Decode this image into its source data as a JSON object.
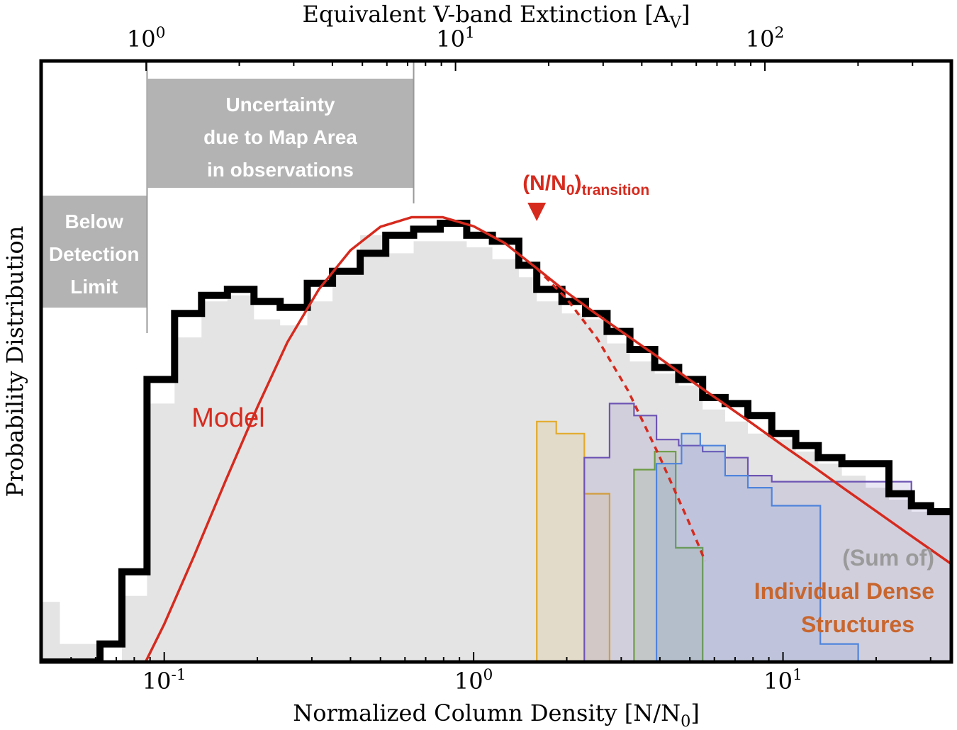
{
  "chart_data": {
    "type": "line",
    "xscale": "log",
    "xlim": [
      0.04,
      35
    ],
    "ylim": [
      0,
      1
    ],
    "xlabel": "Normalized Column Density [N/N",
    "xlabel_sub": "0",
    "xlabel_end": "]",
    "top_xlabel": "Equivalent V-band Extinction [A",
    "top_xlabel_sub": "V",
    "top_xlabel_end": "]",
    "ylabel": "Probability Distribution",
    "x_ticks": [
      {
        "value": 0.1,
        "base": "10",
        "exp": "-1"
      },
      {
        "value": 1,
        "base": "10",
        "exp": "0"
      },
      {
        "value": 10,
        "base": "10",
        "exp": "1"
      }
    ],
    "top_ticks": [
      {
        "value": 0.0874,
        "base": "10",
        "exp": "0"
      },
      {
        "value": 0.874,
        "base": "10",
        "exp": "1"
      },
      {
        "value": 8.74,
        "base": "10",
        "exp": "2"
      }
    ],
    "annotations": {
      "below_detection": [
        "Below",
        "Detection",
        "Limit"
      ],
      "uncertainty": [
        "Uncertainty",
        "due to Map Area",
        "in observations"
      ],
      "transition_main": "(N/N",
      "transition_sub0": "0",
      "transition_close": ")",
      "transition_sub": "transition",
      "model": "Model",
      "sum_of": "(Sum of)",
      "individual_1": "Individual Dense",
      "individual_2": "Structures"
    },
    "colors": {
      "observed": "#000000",
      "model": "#d62a1e",
      "gray_fill": "#e4e4e4",
      "band_fill": "#b3b3b3",
      "dense_label": "#c8662e",
      "sum_label": "#9a9a9a",
      "yellow": "#e2ab2e",
      "purple": "#6d54b4",
      "green": "#6e9c46",
      "blue": "#4f84dc"
    },
    "regions": {
      "below_detection_x": [
        0.04,
        0.088
      ],
      "uncertainty_x": [
        0.088,
        0.64
      ]
    },
    "transition_x": 1.6,
    "series": {
      "observed": [
        [
          0.04,
          0.0
        ],
        [
          0.062,
          0.0
        ],
        [
          0.062,
          0.03
        ],
        [
          0.073,
          0.03
        ],
        [
          0.073,
          0.15
        ],
        [
          0.088,
          0.15
        ],
        [
          0.088,
          0.47
        ],
        [
          0.108,
          0.47
        ],
        [
          0.108,
          0.58
        ],
        [
          0.132,
          0.58
        ],
        [
          0.132,
          0.61
        ],
        [
          0.16,
          0.61
        ],
        [
          0.16,
          0.62
        ],
        [
          0.195,
          0.62
        ],
        [
          0.195,
          0.6
        ],
        [
          0.237,
          0.6
        ],
        [
          0.237,
          0.59
        ],
        [
          0.29,
          0.59
        ],
        [
          0.29,
          0.63
        ],
        [
          0.35,
          0.63
        ],
        [
          0.35,
          0.65
        ],
        [
          0.43,
          0.65
        ],
        [
          0.43,
          0.68
        ],
        [
          0.52,
          0.68
        ],
        [
          0.52,
          0.71
        ],
        [
          0.64,
          0.71
        ],
        [
          0.64,
          0.72
        ],
        [
          0.78,
          0.72
        ],
        [
          0.78,
          0.73
        ],
        [
          0.95,
          0.73
        ],
        [
          0.95,
          0.71
        ],
        [
          1.15,
          0.71
        ],
        [
          1.15,
          0.7
        ],
        [
          1.4,
          0.7
        ],
        [
          1.4,
          0.66
        ],
        [
          1.6,
          0.66
        ],
        [
          1.6,
          0.62
        ],
        [
          1.93,
          0.62
        ],
        [
          1.93,
          0.6
        ],
        [
          2.3,
          0.6
        ],
        [
          2.3,
          0.58
        ],
        [
          2.7,
          0.58
        ],
        [
          2.7,
          0.55
        ],
        [
          3.2,
          0.55
        ],
        [
          3.2,
          0.52
        ],
        [
          3.85,
          0.52
        ],
        [
          3.85,
          0.49
        ],
        [
          4.6,
          0.49
        ],
        [
          4.6,
          0.47
        ],
        [
          5.5,
          0.47
        ],
        [
          5.5,
          0.44
        ],
        [
          6.5,
          0.44
        ],
        [
          6.5,
          0.43
        ],
        [
          7.7,
          0.43
        ],
        [
          7.7,
          0.41
        ],
        [
          9.2,
          0.41
        ],
        [
          9.2,
          0.38
        ],
        [
          11,
          0.38
        ],
        [
          11,
          0.36
        ],
        [
          13,
          0.36
        ],
        [
          13,
          0.34
        ],
        [
          15.5,
          0.34
        ],
        [
          15.5,
          0.33
        ],
        [
          18.5,
          0.33
        ],
        [
          18.5,
          0.33
        ],
        [
          22,
          0.33
        ],
        [
          22,
          0.28
        ],
        [
          26,
          0.28
        ],
        [
          26,
          0.26
        ],
        [
          30,
          0.26
        ],
        [
          30,
          0.25
        ],
        [
          35,
          0.25
        ]
      ],
      "model": [
        [
          0.087,
          0.0
        ],
        [
          0.1,
          0.063
        ],
        [
          0.125,
          0.177
        ],
        [
          0.158,
          0.302
        ],
        [
          0.2,
          0.424
        ],
        [
          0.25,
          0.532
        ],
        [
          0.316,
          0.62
        ],
        [
          0.4,
          0.685
        ],
        [
          0.5,
          0.724
        ],
        [
          0.631,
          0.74
        ],
        [
          0.794,
          0.74
        ],
        [
          1.0,
          0.725
        ],
        [
          1.26,
          0.697
        ],
        [
          1.6,
          0.655
        ],
        [
          2.0,
          0.615
        ],
        [
          2.51,
          0.578
        ],
        [
          3.16,
          0.542
        ],
        [
          3.98,
          0.506
        ],
        [
          5.01,
          0.469
        ],
        [
          6.31,
          0.433
        ],
        [
          7.94,
          0.397
        ],
        [
          10.0,
          0.36
        ],
        [
          12.6,
          0.324
        ],
        [
          15.8,
          0.288
        ],
        [
          20.0,
          0.251
        ],
        [
          25.1,
          0.215
        ],
        [
          31.6,
          0.179
        ],
        [
          35,
          0.163
        ]
      ],
      "model_dashed": [
        [
          1.6,
          0.655
        ],
        [
          2.0,
          0.604
        ],
        [
          2.51,
          0.538
        ],
        [
          3.16,
          0.451
        ],
        [
          3.98,
          0.343
        ],
        [
          5.01,
          0.228
        ],
        [
          5.6,
          0.168
        ]
      ],
      "gray_fill": [
        [
          0.04,
          0.1
        ],
        [
          0.046,
          0.1
        ],
        [
          0.046,
          0.03
        ],
        [
          0.062,
          0.03
        ],
        [
          0.062,
          0.0
        ],
        [
          0.073,
          0.0
        ],
        [
          0.073,
          0.11
        ],
        [
          0.088,
          0.11
        ],
        [
          0.088,
          0.43
        ],
        [
          0.108,
          0.43
        ],
        [
          0.108,
          0.54
        ],
        [
          0.132,
          0.54
        ],
        [
          0.132,
          0.6
        ],
        [
          0.16,
          0.6
        ],
        [
          0.16,
          0.61
        ],
        [
          0.195,
          0.61
        ],
        [
          0.195,
          0.57
        ],
        [
          0.237,
          0.57
        ],
        [
          0.237,
          0.56
        ],
        [
          0.29,
          0.56
        ],
        [
          0.29,
          0.6
        ],
        [
          0.35,
          0.6
        ],
        [
          0.35,
          0.65
        ],
        [
          0.43,
          0.65
        ],
        [
          0.43,
          0.71
        ],
        [
          0.52,
          0.71
        ],
        [
          0.52,
          0.68
        ],
        [
          0.64,
          0.68
        ],
        [
          0.64,
          0.7
        ],
        [
          0.78,
          0.7
        ],
        [
          0.78,
          0.7
        ],
        [
          0.95,
          0.7
        ],
        [
          0.95,
          0.69
        ],
        [
          1.15,
          0.69
        ],
        [
          1.15,
          0.67
        ],
        [
          1.4,
          0.67
        ],
        [
          1.4,
          0.64
        ],
        [
          1.6,
          0.64
        ],
        [
          1.6,
          0.6
        ],
        [
          1.93,
          0.6
        ],
        [
          1.93,
          0.58
        ],
        [
          2.3,
          0.58
        ],
        [
          2.3,
          0.57
        ],
        [
          2.7,
          0.57
        ],
        [
          2.7,
          0.53
        ],
        [
          3.2,
          0.53
        ],
        [
          3.2,
          0.5
        ],
        [
          3.85,
          0.5
        ],
        [
          3.85,
          0.48
        ],
        [
          4.6,
          0.48
        ],
        [
          4.6,
          0.46
        ],
        [
          5.5,
          0.46
        ],
        [
          5.5,
          0.42
        ],
        [
          6.5,
          0.42
        ],
        [
          6.5,
          0.4
        ],
        [
          7.7,
          0.4
        ],
        [
          7.7,
          0.38
        ],
        [
          9.2,
          0.38
        ],
        [
          9.2,
          0.37
        ],
        [
          11,
          0.37
        ],
        [
          11,
          0.35
        ],
        [
          13,
          0.35
        ],
        [
          13,
          0.33
        ],
        [
          15.5,
          0.33
        ],
        [
          15.5,
          0.31
        ],
        [
          18.5,
          0.31
        ],
        [
          18.5,
          0.29
        ],
        [
          22,
          0.29
        ],
        [
          22,
          0.27
        ],
        [
          26,
          0.27
        ],
        [
          26,
          0.25
        ],
        [
          35,
          0.25
        ]
      ],
      "sum_fill": [
        [
          0.9,
          0.0
        ],
        [
          0.9,
          0.24
        ],
        [
          1.0,
          0.24
        ],
        [
          1.0,
          0.44
        ],
        [
          1.15,
          0.44
        ],
        [
          1.15,
          0.46
        ],
        [
          1.4,
          0.46
        ],
        [
          1.4,
          0.44
        ],
        [
          1.6,
          0.44
        ],
        [
          1.6,
          0.43
        ],
        [
          1.93,
          0.43
        ],
        [
          1.93,
          0.44
        ],
        [
          2.3,
          0.44
        ],
        [
          2.3,
          0.42
        ],
        [
          2.7,
          0.42
        ],
        [
          2.7,
          0.43
        ],
        [
          3.2,
          0.43
        ],
        [
          3.2,
          0.4
        ],
        [
          3.85,
          0.4
        ],
        [
          3.85,
          0.37
        ],
        [
          4.6,
          0.37
        ],
        [
          4.6,
          0.4
        ],
        [
          5.5,
          0.4
        ],
        [
          5.5,
          0.38
        ],
        [
          6.5,
          0.38
        ],
        [
          6.5,
          0.37
        ],
        [
          7.7,
          0.37
        ],
        [
          7.7,
          0.36
        ],
        [
          9.2,
          0.36
        ],
        [
          9.2,
          0.35
        ],
        [
          11,
          0.35
        ],
        [
          11,
          0.33
        ],
        [
          13,
          0.33
        ],
        [
          13,
          0.31
        ],
        [
          15.5,
          0.31
        ],
        [
          15.5,
          0.3
        ],
        [
          18.5,
          0.3
        ],
        [
          18.5,
          0.28
        ],
        [
          22,
          0.28
        ],
        [
          22,
          0.26
        ],
        [
          26,
          0.26
        ],
        [
          26,
          0.25
        ],
        [
          35,
          0.25
        ],
        [
          35,
          0.0
        ]
      ],
      "structures": [
        {
          "color_key": "yellow",
          "points": [
            [
              1.6,
              0.0
            ],
            [
              1.6,
              0.4
            ],
            [
              1.85,
              0.4
            ],
            [
              1.85,
              0.38
            ],
            [
              2.28,
              0.38
            ],
            [
              2.28,
              0.28
            ],
            [
              2.75,
              0.28
            ],
            [
              2.75,
              0.0
            ]
          ]
        },
        {
          "color_key": "purple",
          "points": [
            [
              2.28,
              0.0
            ],
            [
              2.28,
              0.34
            ],
            [
              2.75,
              0.34
            ],
            [
              2.75,
              0.43
            ],
            [
              3.3,
              0.43
            ],
            [
              3.3,
              0.41
            ],
            [
              3.9,
              0.41
            ],
            [
              3.9,
              0.37
            ],
            [
              4.6,
              0.37
            ],
            [
              4.6,
              0.36
            ],
            [
              5.5,
              0.36
            ],
            [
              5.5,
              0.35
            ],
            [
              6.5,
              0.35
            ],
            [
              6.5,
              0.34
            ],
            [
              7.7,
              0.34
            ],
            [
              7.7,
              0.31
            ],
            [
              9.2,
              0.31
            ],
            [
              9.2,
              0.3
            ],
            [
              26,
              0.3
            ],
            [
              26,
              0.26
            ],
            [
              30,
              0.26
            ],
            [
              30,
              0.25
            ],
            [
              35,
              0.25
            ],
            [
              35,
              0.0
            ]
          ]
        },
        {
          "color_key": "green",
          "points": [
            [
              3.3,
              0.0
            ],
            [
              3.3,
              0.32
            ],
            [
              3.85,
              0.32
            ],
            [
              3.85,
              0.35
            ],
            [
              4.5,
              0.35
            ],
            [
              4.5,
              0.19
            ],
            [
              5.5,
              0.19
            ],
            [
              5.5,
              0.0
            ]
          ]
        },
        {
          "color_key": "blue",
          "points": [
            [
              3.9,
              0.0
            ],
            [
              3.9,
              0.33
            ],
            [
              4.7,
              0.33
            ],
            [
              4.7,
              0.38
            ],
            [
              5.4,
              0.38
            ],
            [
              5.4,
              0.36
            ],
            [
              6.5,
              0.36
            ],
            [
              6.5,
              0.31
            ],
            [
              7.7,
              0.31
            ],
            [
              7.7,
              0.29
            ],
            [
              9.2,
              0.29
            ],
            [
              9.2,
              0.26
            ],
            [
              13.2,
              0.26
            ],
            [
              13.2,
              0.03
            ],
            [
              17.5,
              0.03
            ],
            [
              17.5,
              0.0
            ]
          ]
        }
      ]
    }
  }
}
